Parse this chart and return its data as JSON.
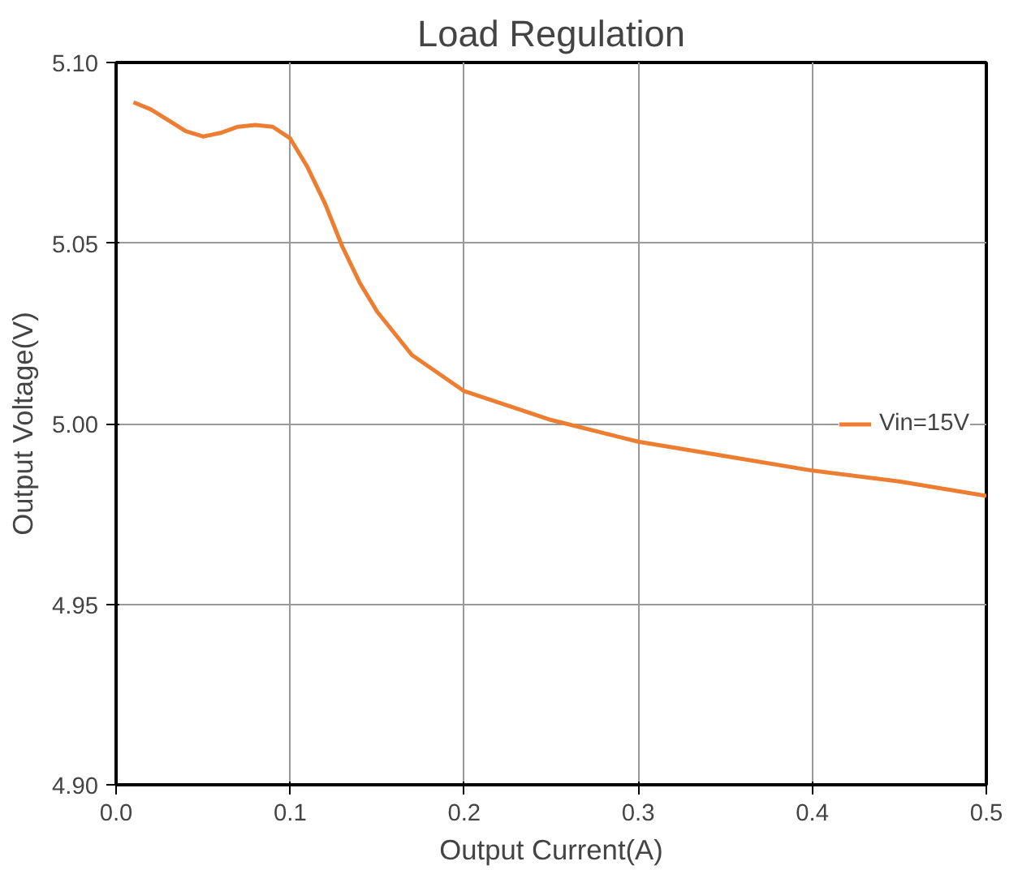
{
  "chart_data": {
    "type": "line",
    "title": "Load Regulation",
    "xlabel": "Output Current(A)",
    "ylabel": "Output Voltage(V)",
    "x": [
      0.01,
      0.02,
      0.03,
      0.04,
      0.05,
      0.06,
      0.07,
      0.08,
      0.09,
      0.1,
      0.11,
      0.12,
      0.13,
      0.14,
      0.15,
      0.17,
      0.2,
      0.25,
      0.3,
      0.35,
      0.4,
      0.45,
      0.5
    ],
    "series": [
      {
        "name": "Vin=15V",
        "color": "#ed7d31",
        "values": [
          5.089,
          5.087,
          5.084,
          5.081,
          5.0795,
          5.0805,
          5.0822,
          5.0827,
          5.0822,
          5.079,
          5.071,
          5.061,
          5.049,
          5.039,
          5.031,
          5.019,
          5.009,
          5.001,
          4.995,
          4.991,
          4.987,
          4.984,
          4.98
        ]
      }
    ],
    "xlim": [
      0,
      0.5
    ],
    "ylim": [
      4.9,
      5.1
    ],
    "xticks": [
      {
        "value": 0,
        "label": "0.0"
      },
      0.1,
      0.2,
      0.3,
      0.4,
      0.5
    ],
    "yticks": [
      {
        "value": 4.9,
        "label": "4.90"
      },
      {
        "value": 4.95,
        "label": "4.95"
      },
      {
        "value": 5.0,
        "label": "5.00"
      },
      {
        "value": 5.05,
        "label": "5.05"
      },
      {
        "value": 5.1,
        "label": "5.10"
      }
    ],
    "grid": true,
    "legend": "right",
    "marker": "none",
    "line_style": "solid"
  }
}
